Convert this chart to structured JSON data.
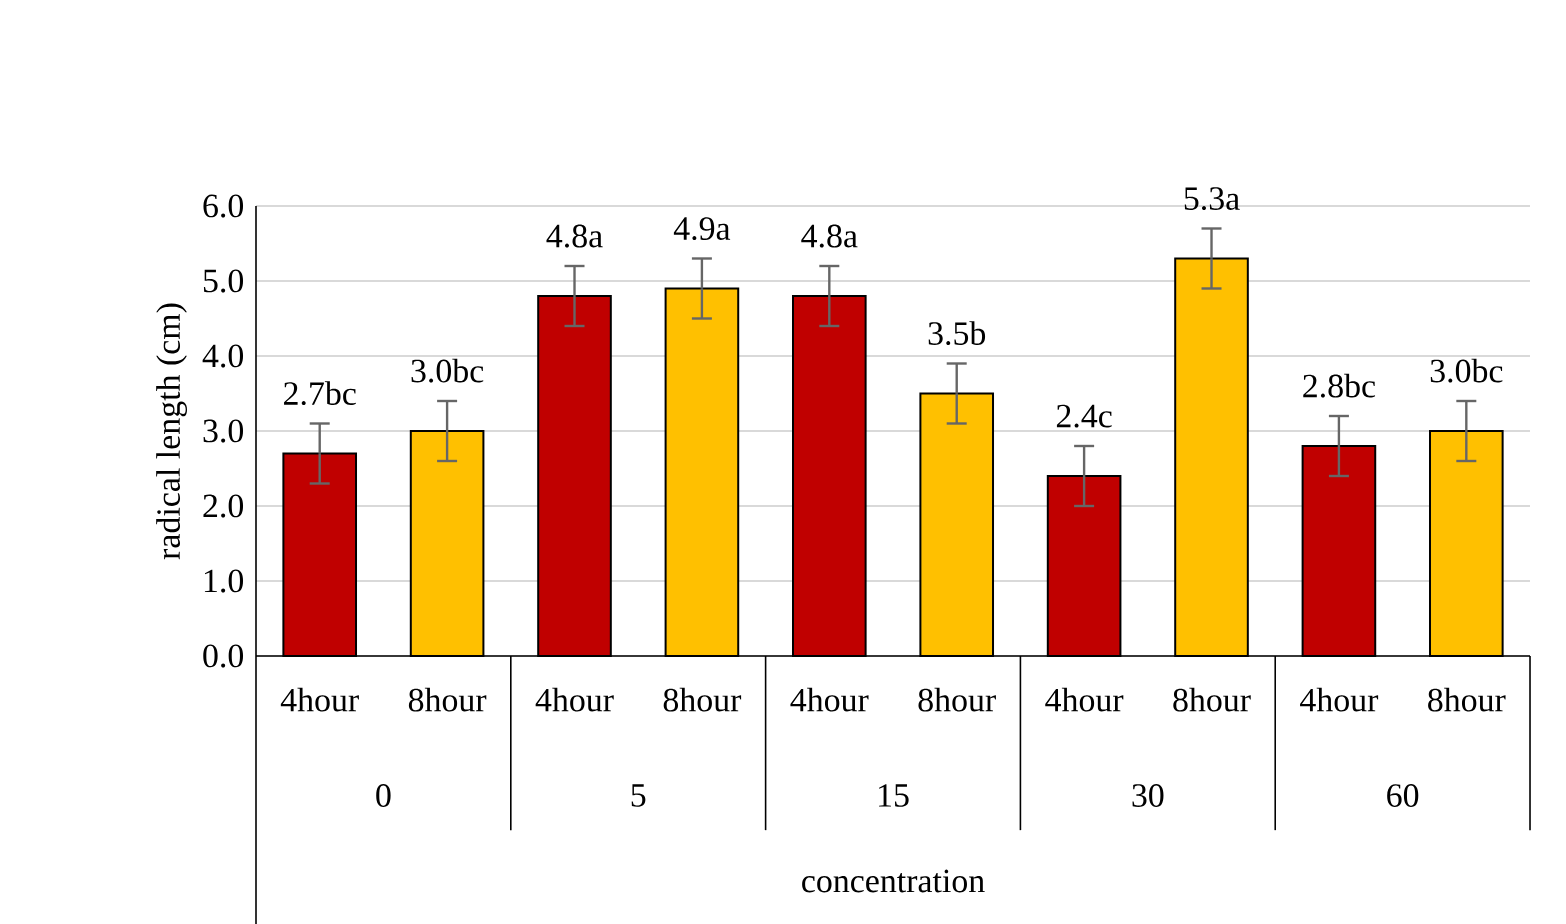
{
  "chart_data": {
    "type": "bar",
    "ylabel": "radical length (cm)",
    "xlabel": "concentration",
    "categories": [
      "4hour",
      "8hour",
      "4hour",
      "8hour",
      "4hour",
      "8hour",
      "4hour",
      "8hour",
      "4hour",
      "8hour"
    ],
    "values": [
      2.7,
      3.0,
      4.8,
      4.9,
      4.8,
      3.5,
      2.4,
      5.3,
      2.8,
      3.0
    ],
    "colors": [
      "#c00000",
      "#ffc000",
      "#c00000",
      "#ffc000",
      "#c00000",
      "#ffc000",
      "#c00000",
      "#ffc000",
      "#c00000",
      "#ffc000"
    ],
    "errors": [
      0.4,
      0.4,
      0.4,
      0.4,
      0.4,
      0.4,
      0.4,
      0.4,
      0.4,
      0.4
    ],
    "value_labels": [
      "2.7bc",
      "3.0bc",
      "4.8a",
      "4.9a",
      "4.8a",
      "3.5b",
      "2.4c",
      "5.3a",
      "2.8bc",
      "3.0bc"
    ],
    "annotations": [
      "0",
      "5",
      "15",
      "30",
      "60"
    ],
    "ylim": [
      0,
      6
    ],
    "yticks": [
      {
        "value": 0,
        "label": "0.0"
      },
      {
        "value": 1,
        "label": "1.0"
      },
      {
        "value": 2,
        "label": "2.0"
      },
      {
        "value": 3,
        "label": "3.0"
      },
      {
        "value": 4,
        "label": "4.0"
      },
      {
        "value": 5,
        "label": "5.0"
      },
      {
        "value": 6,
        "label": "6.0"
      }
    ],
    "grid": "y"
  }
}
